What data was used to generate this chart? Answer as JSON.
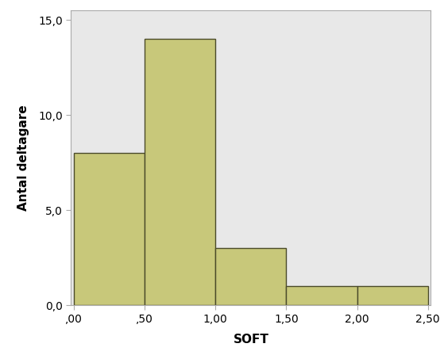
{
  "bar_lefts": [
    0.0,
    0.5,
    1.0,
    1.5,
    2.0
  ],
  "bar_heights": [
    8,
    14,
    3,
    1,
    1
  ],
  "bar_width": 0.5,
  "bar_color": "#c8c87a",
  "bar_edgecolor": "#4a4a2a",
  "xlabel": "SOFT",
  "ylabel": "Antal deltagare",
  "xlim": [
    -0.02,
    2.52
  ],
  "ylim": [
    0.0,
    15.5
  ],
  "xticks": [
    0.0,
    0.5,
    1.0,
    1.5,
    2.0,
    2.5
  ],
  "xtick_labels": [
    ",00",
    ",50",
    "1,00",
    "1,50",
    "2,00",
    "2,50"
  ],
  "yticks": [
    0.0,
    5.0,
    10.0,
    15.0
  ],
  "ytick_labels": [
    "0,0",
    "5,0",
    "10,0",
    "15,0"
  ],
  "figure_bg": "#ffffff",
  "plot_area_color": "#e8e8e8",
  "xlabel_fontsize": 11,
  "ylabel_fontsize": 11,
  "tick_fontsize": 10,
  "bar_linewidth": 1.0,
  "spine_color": "#aaaaaa"
}
